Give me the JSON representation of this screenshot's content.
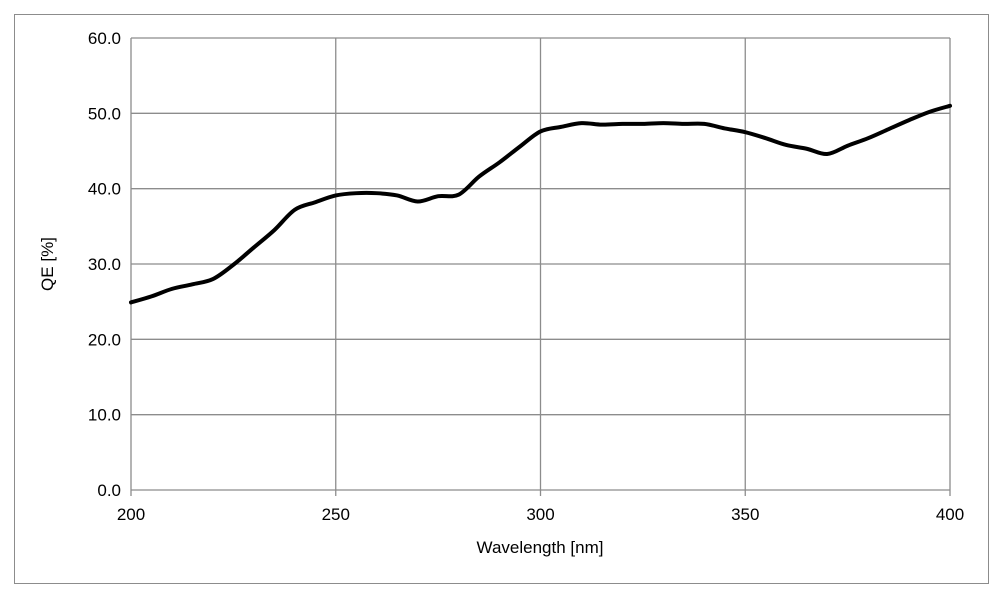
{
  "chart_data": {
    "type": "line",
    "xlabel": "Wavelength [nm]",
    "ylabel": "QE [%]",
    "xlim": [
      200,
      400
    ],
    "ylim": [
      0,
      60
    ],
    "x_ticks": [
      "200",
      "250",
      "300",
      "350",
      "400"
    ],
    "y_ticks": [
      "0.0",
      "10.0",
      "20.0",
      "30.0",
      "40.0",
      "50.0",
      "60.0"
    ],
    "grid": true,
    "legend": "none",
    "series": [
      {
        "color": "#000000",
        "x": [
          200,
          205,
          210,
          215,
          220,
          225,
          230,
          235,
          240,
          245,
          250,
          255,
          260,
          265,
          270,
          275,
          280,
          285,
          290,
          295,
          300,
          305,
          310,
          315,
          320,
          325,
          330,
          335,
          340,
          345,
          350,
          355,
          360,
          365,
          370,
          375,
          380,
          385,
          390,
          395,
          400
        ],
        "y": [
          24.9,
          25.7,
          26.7,
          27.3,
          28.0,
          29.9,
          32.2,
          34.5,
          37.2,
          38.2,
          39.1,
          39.4,
          39.4,
          39.1,
          38.3,
          39.0,
          39.2,
          41.6,
          43.5,
          45.6,
          47.6,
          48.2,
          48.7,
          48.5,
          48.6,
          48.6,
          48.7,
          48.6,
          48.6,
          48.0,
          47.5,
          46.7,
          45.8,
          45.3,
          44.6,
          45.7,
          46.7,
          47.9,
          49.1,
          50.2,
          51.0
        ]
      }
    ]
  }
}
